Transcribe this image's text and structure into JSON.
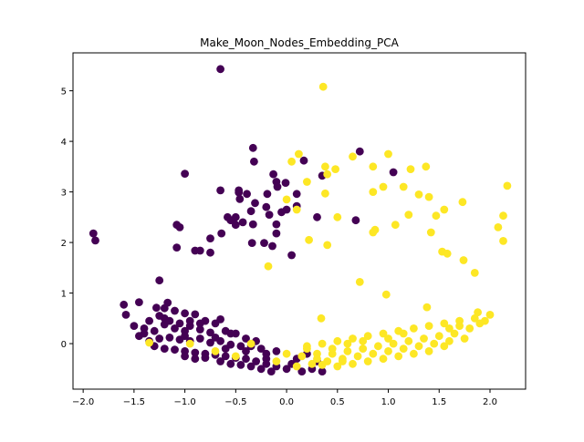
{
  "chart_data": {
    "type": "scatter",
    "title": "Make_Moon_Nodes_Embedding_PCA",
    "xlabel": "",
    "ylabel": "",
    "xlim": [
      -2.1,
      2.35
    ],
    "ylim": [
      -0.9,
      5.75
    ],
    "x_ticks": [
      -2.0,
      -1.5,
      -1.0,
      -0.5,
      0.0,
      0.5,
      1.0,
      1.5,
      2.0
    ],
    "x_tick_labels": [
      "−2.0",
      "−1.5",
      "−1.0",
      "−0.5",
      "0.0",
      "0.5",
      "1.0",
      "1.5",
      "2.0"
    ],
    "y_ticks": [
      0,
      1,
      2,
      3,
      4,
      5
    ],
    "y_tick_labels": [
      "0",
      "1",
      "2",
      "3",
      "4",
      "5"
    ],
    "grid": false,
    "legend": "none",
    "series": [
      {
        "color": "#440154",
        "points": [
          [
            -0.65,
            5.43
          ],
          [
            -0.33,
            3.87
          ],
          [
            -0.32,
            3.6
          ],
          [
            -0.13,
            3.35
          ],
          [
            0.17,
            3.62
          ],
          [
            0.72,
            3.8
          ],
          [
            1.05,
            3.39
          ],
          [
            -1.0,
            3.36
          ],
          [
            -0.47,
            3.03
          ],
          [
            -0.47,
            2.99
          ],
          [
            -0.39,
            2.96
          ],
          [
            -0.09,
            3.1
          ],
          [
            -0.01,
            3.18
          ],
          [
            -0.65,
            3.03
          ],
          [
            -0.1,
            3.2
          ],
          [
            -0.19,
            2.96
          ],
          [
            0.1,
            2.96
          ],
          [
            -0.46,
            2.86
          ],
          [
            -0.31,
            2.78
          ],
          [
            -0.2,
            2.7
          ],
          [
            0.1,
            2.72
          ],
          [
            0.0,
            2.65
          ],
          [
            -0.05,
            2.6
          ],
          [
            -0.35,
            2.62
          ],
          [
            -0.5,
            2.5
          ],
          [
            -0.58,
            2.5
          ],
          [
            -0.55,
            2.44
          ],
          [
            -0.43,
            2.4
          ],
          [
            -0.5,
            2.35
          ],
          [
            -0.17,
            2.55
          ],
          [
            0.3,
            2.5
          ],
          [
            -1.08,
            2.35
          ],
          [
            -1.05,
            2.3
          ],
          [
            -0.64,
            2.18
          ],
          [
            -0.33,
            2.36
          ],
          [
            -0.1,
            2.36
          ],
          [
            -0.1,
            2.18
          ],
          [
            -0.22,
            1.99
          ],
          [
            -0.14,
            1.93
          ],
          [
            -0.34,
            1.99
          ],
          [
            0.05,
            1.75
          ],
          [
            -0.75,
            2.08
          ],
          [
            -0.9,
            1.84
          ],
          [
            -0.85,
            1.84
          ],
          [
            -0.75,
            1.8
          ],
          [
            -1.08,
            1.9
          ],
          [
            -1.9,
            2.18
          ],
          [
            -1.88,
            2.04
          ],
          [
            0.35,
            3.32
          ],
          [
            0.68,
            2.44
          ],
          [
            -1.25,
            1.25
          ],
          [
            -1.6,
            0.77
          ],
          [
            -1.45,
            0.82
          ],
          [
            -1.17,
            0.81
          ],
          [
            -1.58,
            0.57
          ],
          [
            -1.28,
            0.71
          ],
          [
            -1.2,
            0.7
          ],
          [
            -1.1,
            0.65
          ],
          [
            -1.0,
            0.6
          ],
          [
            -0.9,
            0.58
          ],
          [
            -0.8,
            0.45
          ],
          [
            -0.7,
            0.4
          ],
          [
            -0.65,
            0.48
          ],
          [
            -1.5,
            0.35
          ],
          [
            -1.4,
            0.3
          ],
          [
            -1.3,
            0.25
          ],
          [
            -1.2,
            0.38
          ],
          [
            -1.1,
            0.3
          ],
          [
            -1.0,
            0.25
          ],
          [
            -0.95,
            0.35
          ],
          [
            -0.85,
            0.28
          ],
          [
            -0.75,
            0.22
          ],
          [
            -0.6,
            0.25
          ],
          [
            -0.5,
            0.2
          ],
          [
            -0.4,
            0.1
          ],
          [
            -1.45,
            0.15
          ],
          [
            -1.35,
            0.05
          ],
          [
            -1.25,
            0.1
          ],
          [
            -1.15,
            0.12
          ],
          [
            -1.05,
            0.08
          ],
          [
            -0.95,
            0.05
          ],
          [
            -0.85,
            0.1
          ],
          [
            -0.75,
            0.02
          ],
          [
            -0.65,
            0.05
          ],
          [
            -0.55,
            -0.02
          ],
          [
            -0.45,
            -0.05
          ],
          [
            -0.35,
            -0.05
          ],
          [
            -0.25,
            -0.1
          ],
          [
            -1.3,
            -0.05
          ],
          [
            -1.2,
            -0.1
          ],
          [
            -1.1,
            -0.12
          ],
          [
            -1.0,
            -0.15
          ],
          [
            -0.9,
            -0.18
          ],
          [
            -0.8,
            -0.2
          ],
          [
            -0.7,
            -0.22
          ],
          [
            -0.6,
            -0.25
          ],
          [
            -0.5,
            -0.28
          ],
          [
            -0.4,
            -0.3
          ],
          [
            -0.3,
            -0.35
          ],
          [
            -0.2,
            -0.4
          ],
          [
            -0.1,
            -0.45
          ],
          [
            0.0,
            -0.5
          ],
          [
            -1.0,
            -0.25
          ],
          [
            -0.9,
            -0.3
          ],
          [
            -0.8,
            -0.28
          ],
          [
            -0.65,
            -0.35
          ],
          [
            -0.55,
            -0.4
          ],
          [
            -0.45,
            -0.42
          ],
          [
            -0.35,
            -0.45
          ],
          [
            -0.25,
            -0.5
          ],
          [
            -0.15,
            -0.55
          ],
          [
            0.05,
            -0.4
          ],
          [
            0.15,
            -0.55
          ],
          [
            0.25,
            -0.5
          ],
          [
            0.35,
            -0.55
          ],
          [
            -1.2,
            0.5
          ],
          [
            -1.15,
            0.45
          ],
          [
            -1.05,
            0.4
          ],
          [
            -1.25,
            0.55
          ],
          [
            -1.35,
            0.45
          ],
          [
            -0.95,
            0.45
          ],
          [
            -0.85,
            0.4
          ],
          [
            -1.4,
            0.2
          ],
          [
            -1.0,
            0.15
          ],
          [
            -0.7,
            0.12
          ],
          [
            -0.3,
            0.05
          ],
          [
            -0.2,
            -0.2
          ],
          [
            -0.1,
            -0.15
          ],
          [
            0.1,
            -0.3
          ],
          [
            0.3,
            -0.35
          ],
          [
            -0.55,
            0.2
          ],
          [
            -0.4,
            -0.15
          ],
          [
            -0.6,
            -0.1
          ],
          [
            -0.2,
            -0.3
          ],
          [
            0.2,
            -0.2
          ]
        ]
      },
      {
        "color": "#fde725",
        "points": [
          [
            0.36,
            5.08
          ],
          [
            0.12,
            3.75
          ],
          [
            0.38,
            3.5
          ],
          [
            1.0,
            3.75
          ],
          [
            0.85,
            3.5
          ],
          [
            0.65,
            3.7
          ],
          [
            0.05,
            3.6
          ],
          [
            0.48,
            3.45
          ],
          [
            0.4,
            3.35
          ],
          [
            1.22,
            3.45
          ],
          [
            1.37,
            3.5
          ],
          [
            1.15,
            3.1
          ],
          [
            0.95,
            3.1
          ],
          [
            0.85,
            3.0
          ],
          [
            0.2,
            3.2
          ],
          [
            0.38,
            2.97
          ],
          [
            0.0,
            2.85
          ],
          [
            0.1,
            2.65
          ],
          [
            1.3,
            2.95
          ],
          [
            1.4,
            2.9
          ],
          [
            1.73,
            2.8
          ],
          [
            1.55,
            2.65
          ],
          [
            2.17,
            3.12
          ],
          [
            2.13,
            2.53
          ],
          [
            1.47,
            2.53
          ],
          [
            1.2,
            2.55
          ],
          [
            1.07,
            2.35
          ],
          [
            0.87,
            2.25
          ],
          [
            0.85,
            2.2
          ],
          [
            0.5,
            2.5
          ],
          [
            2.08,
            2.3
          ],
          [
            1.42,
            2.2
          ],
          [
            0.22,
            2.05
          ],
          [
            0.4,
            1.95
          ],
          [
            1.53,
            1.82
          ],
          [
            1.58,
            1.78
          ],
          [
            2.13,
            2.03
          ],
          [
            1.74,
            1.65
          ],
          [
            1.85,
            1.4
          ],
          [
            -0.18,
            1.53
          ],
          [
            0.72,
            1.22
          ],
          [
            0.98,
            0.97
          ],
          [
            1.38,
            0.72
          ],
          [
            0.34,
            0.5
          ],
          [
            1.88,
            0.62
          ],
          [
            2.0,
            0.57
          ],
          [
            1.85,
            0.5
          ],
          [
            1.7,
            0.45
          ],
          [
            1.55,
            0.4
          ],
          [
            1.4,
            0.35
          ],
          [
            1.25,
            0.3
          ],
          [
            1.1,
            0.25
          ],
          [
            0.95,
            0.2
          ],
          [
            0.8,
            0.15
          ],
          [
            0.65,
            0.1
          ],
          [
            0.5,
            0.05
          ],
          [
            0.35,
            0.0
          ],
          [
            0.2,
            -0.05
          ],
          [
            -1.35,
            0.02
          ],
          [
            -0.95,
            0.0
          ],
          [
            -0.35,
            0.0
          ],
          [
            1.8,
            0.3
          ],
          [
            1.65,
            0.2
          ],
          [
            1.5,
            0.15
          ],
          [
            1.35,
            0.1
          ],
          [
            1.2,
            0.05
          ],
          [
            1.05,
            0.0
          ],
          [
            0.9,
            -0.05
          ],
          [
            0.75,
            -0.1
          ],
          [
            0.6,
            -0.15
          ],
          [
            0.45,
            -0.2
          ],
          [
            0.3,
            -0.2
          ],
          [
            0.15,
            -0.25
          ],
          [
            1.75,
            0.1
          ],
          [
            1.6,
            0.05
          ],
          [
            1.45,
            0.0
          ],
          [
            1.3,
            -0.05
          ],
          [
            1.15,
            -0.1
          ],
          [
            1.0,
            -0.15
          ],
          [
            0.85,
            -0.2
          ],
          [
            0.7,
            -0.25
          ],
          [
            0.55,
            -0.3
          ],
          [
            0.4,
            -0.35
          ],
          [
            0.25,
            -0.4
          ],
          [
            1.4,
            -0.15
          ],
          [
            1.25,
            -0.2
          ],
          [
            1.1,
            -0.25
          ],
          [
            0.95,
            -0.3
          ],
          [
            0.8,
            -0.35
          ],
          [
            0.65,
            -0.4
          ],
          [
            0.5,
            -0.45
          ],
          [
            0.35,
            -0.42
          ],
          [
            1.55,
            -0.05
          ],
          [
            1.9,
            0.4
          ],
          [
            1.95,
            0.45
          ],
          [
            0.0,
            -0.2
          ],
          [
            -0.1,
            -0.35
          ],
          [
            0.1,
            -0.45
          ],
          [
            0.6,
            0.0
          ],
          [
            1.0,
            0.1
          ],
          [
            -0.5,
            -0.25
          ],
          [
            -0.7,
            -0.15
          ],
          [
            0.2,
            -0.1
          ],
          [
            0.45,
            -0.1
          ],
          [
            0.75,
            0.05
          ],
          [
            1.15,
            0.2
          ],
          [
            1.6,
            0.3
          ],
          [
            1.7,
            0.35
          ],
          [
            0.55,
            -0.35
          ],
          [
            0.3,
            -0.3
          ]
        ]
      }
    ]
  }
}
